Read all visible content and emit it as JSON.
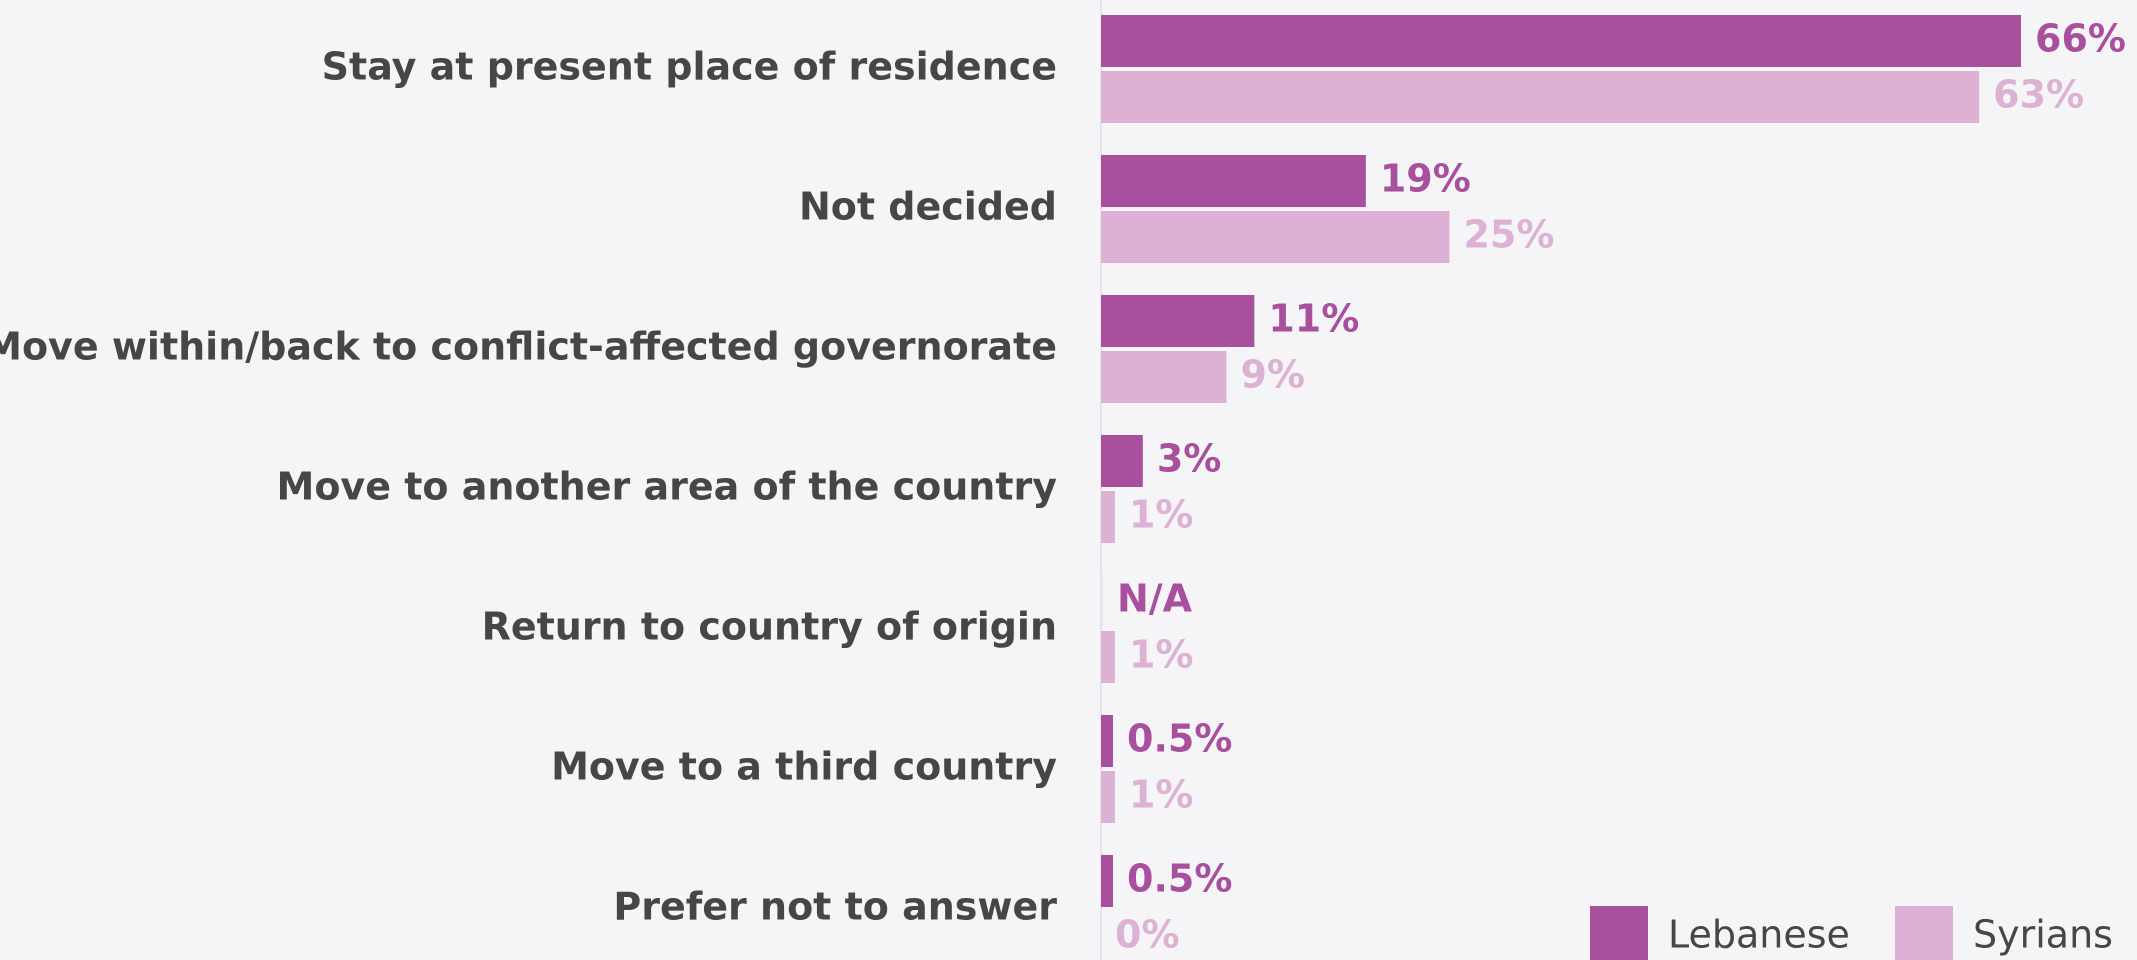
{
  "chart_data": {
    "type": "bar",
    "orientation": "horizontal",
    "categories": [
      "Stay at present place of residence",
      "Not decided",
      "Move within/back to conflict-affected governorate",
      "Move to another area of the country",
      "Return to country of origin",
      "Move to a third country",
      "Prefer not to answer"
    ],
    "series": [
      {
        "name": "Lebanese",
        "color": "#a8509e",
        "values": [
          66,
          19,
          11,
          3,
          null,
          0.5,
          0.5
        ],
        "labels": [
          "66%",
          "19%",
          "11%",
          "3%",
          "N/A",
          "0.5%",
          "0.5%"
        ]
      },
      {
        "name": "Syrians",
        "color": "#ddb1d3",
        "values": [
          63,
          25,
          9,
          1,
          1,
          1,
          0
        ],
        "labels": [
          "63%",
          "25%",
          "9%",
          "1%",
          "1%",
          "1%",
          "0%"
        ]
      }
    ],
    "xlim": [
      0,
      66
    ],
    "grid": false,
    "legend": "bottom-right"
  }
}
